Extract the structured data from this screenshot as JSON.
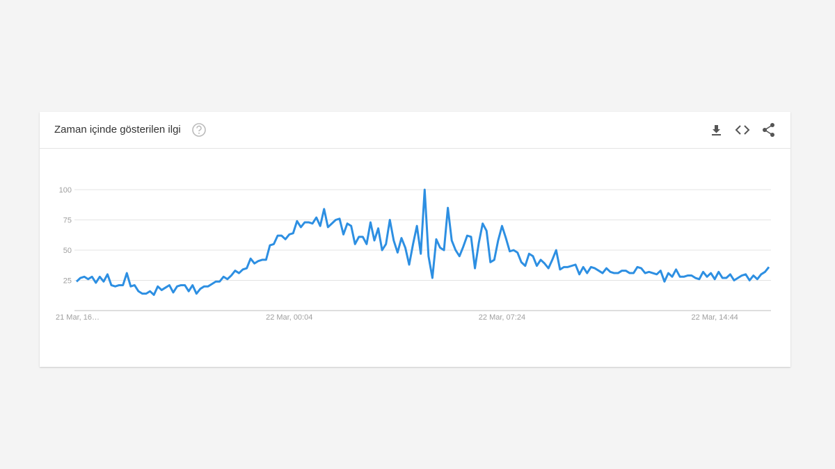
{
  "chart_data": {
    "type": "line",
    "title": "Zaman içinde gösterilen ilgi",
    "categories": [
      "21 Mar, 16…",
      null,
      null,
      null,
      null,
      null,
      null,
      null,
      null,
      null,
      null,
      null,
      null,
      null,
      null,
      null,
      null,
      null,
      null,
      null,
      null,
      null,
      null,
      null,
      null,
      null,
      null,
      null,
      null,
      null,
      null,
      null,
      null,
      null,
      null,
      null,
      null,
      null,
      null,
      null,
      null,
      null,
      null,
      null,
      null,
      null,
      null,
      null,
      null,
      null,
      null,
      null,
      null,
      null,
      null,
      "22 Mar, 00:04",
      null,
      null,
      null,
      null,
      null,
      null,
      null,
      null,
      null,
      null,
      null,
      null,
      null,
      null,
      null,
      null,
      null,
      null,
      null,
      null,
      null,
      null,
      null,
      null,
      null,
      null,
      null,
      null,
      null,
      null,
      null,
      null,
      null,
      null,
      null,
      null,
      null,
      null,
      null,
      null,
      null,
      null,
      null,
      null,
      null,
      null,
      null,
      null,
      null,
      null,
      null,
      null,
      null,
      null,
      "22 Mar, 07:24",
      null,
      null,
      null,
      null,
      null,
      null,
      null,
      null,
      null,
      null,
      null,
      null,
      null,
      null,
      null,
      null,
      null,
      null,
      null,
      null,
      null,
      null,
      null,
      null,
      null,
      null,
      null,
      null,
      null,
      null,
      null,
      null,
      null,
      null,
      null,
      null,
      null,
      null,
      null,
      null,
      null,
      null,
      null,
      null,
      null,
      null,
      null,
      null,
      null,
      null,
      null,
      null,
      null,
      null,
      "22 Mar, 14:44",
      null,
      null,
      null,
      null,
      null,
      null,
      null,
      null,
      null,
      null,
      null,
      null,
      null,
      null
    ],
    "values": [
      24,
      27,
      28,
      26,
      28,
      23,
      28,
      24,
      30,
      21,
      20,
      21,
      21,
      31,
      20,
      21,
      16,
      14,
      14,
      16,
      13,
      20,
      17,
      19,
      21,
      15,
      20,
      21,
      21,
      16,
      21,
      14,
      18,
      20,
      20,
      22,
      24,
      24,
      28,
      26,
      29,
      33,
      31,
      34,
      35,
      43,
      39,
      41,
      42,
      42,
      54,
      55,
      62,
      62,
      59,
      63,
      64,
      74,
      69,
      73,
      73,
      72,
      77,
      70,
      84,
      69,
      72,
      75,
      76,
      63,
      72,
      70,
      55,
      61,
      61,
      55,
      73,
      58,
      68,
      50,
      55,
      75,
      58,
      48,
      60,
      52,
      38,
      55,
      70,
      47,
      100,
      45,
      27,
      59,
      52,
      50,
      85,
      58,
      50,
      45,
      53,
      62,
      61,
      35,
      56,
      72,
      66,
      40,
      42,
      58,
      70,
      60,
      49,
      50,
      48,
      40,
      37,
      47,
      45,
      37,
      42,
      39,
      35,
      42,
      50,
      34,
      36,
      36,
      37,
      38,
      30,
      36,
      31,
      36,
      35,
      33,
      31,
      35,
      32,
      31,
      31,
      33,
      33,
      31,
      31,
      36,
      35,
      31,
      32,
      31,
      30,
      33,
      24,
      31,
      28,
      34,
      28,
      28,
      29,
      29,
      27,
      26,
      32,
      28,
      31,
      26,
      32,
      27,
      27,
      30,
      25,
      27,
      29,
      30,
      25,
      29,
      26,
      30,
      32,
      36
    ],
    "color": "#2d8fe2",
    "ylim": [
      0,
      100
    ],
    "yticks": [
      25,
      50,
      75,
      100
    ],
    "grid": true
  }
}
